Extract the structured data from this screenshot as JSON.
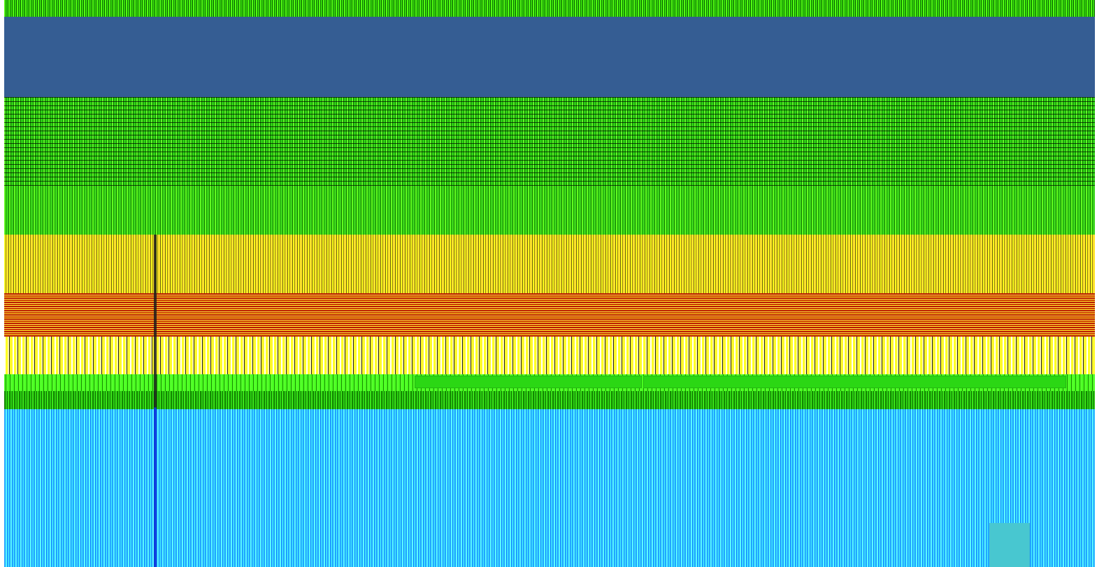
{
  "title": "",
  "bands": [
    {
      "name": "top-strip",
      "color": "#2cbf0a"
    },
    {
      "name": "header",
      "color": "#355d93"
    },
    {
      "name": "green-lines",
      "color": "#2cc20d"
    },
    {
      "name": "green",
      "color": "#36cf14"
    },
    {
      "name": "yellow",
      "color": "#d9d21a"
    },
    {
      "name": "red-lines",
      "color": "#c73300"
    },
    {
      "name": "yellow-white",
      "color": "#ffff2a"
    },
    {
      "name": "green-stripe",
      "color": "#3be316"
    },
    {
      "name": "green-dark",
      "color": "#1d9a0a"
    },
    {
      "name": "blue-noise",
      "color": "#2ebdff"
    }
  ],
  "accent_colors": {
    "header_blue": "#355d93",
    "teal_block": "#48c7d0",
    "vertical_line_blue": "#0b26d8"
  }
}
